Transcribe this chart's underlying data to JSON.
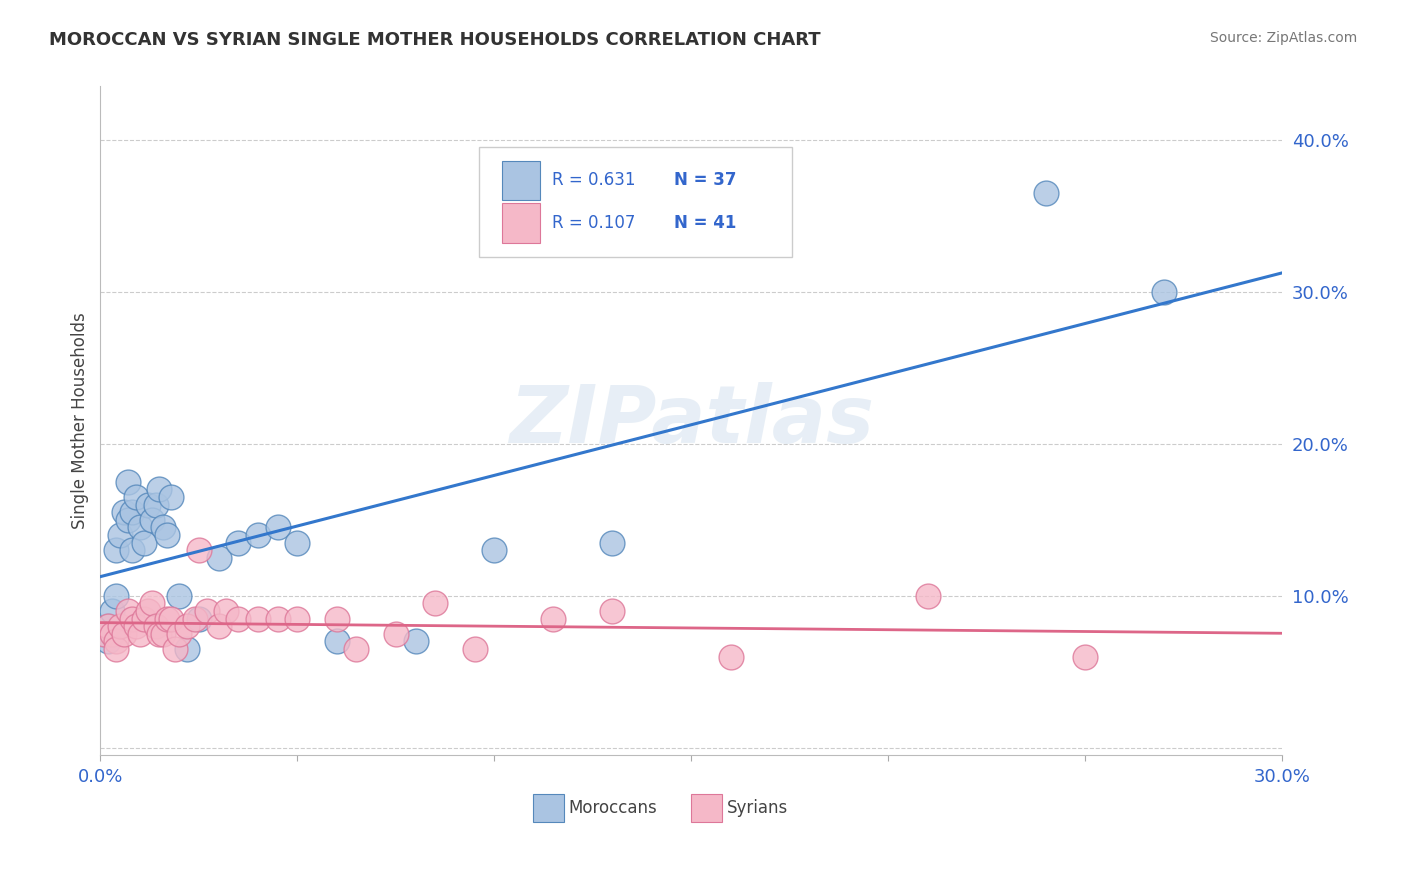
{
  "title": "MOROCCAN VS SYRIAN SINGLE MOTHER HOUSEHOLDS CORRELATION CHART",
  "source": "Source: ZipAtlas.com",
  "ylabel": "Single Mother Households",
  "xlim": [
    0.0,
    0.3
  ],
  "ylim": [
    -0.005,
    0.435
  ],
  "moroccan_R": "0.631",
  "moroccan_N": "37",
  "syrian_R": "0.107",
  "syrian_N": "41",
  "moroccan_color": "#aac4e2",
  "moroccan_edge": "#5588bb",
  "syrian_color": "#f5b8c8",
  "syrian_edge": "#dd7799",
  "moroccan_line_color": "#3377cc",
  "syrian_line_color": "#dd6688",
  "watermark": "ZIPatlas",
  "legend_text_color": "#3366cc",
  "ytick_labels": [
    "",
    "10.0%",
    "20.0%",
    "30.0%",
    "40.0%"
  ],
  "ytick_values": [
    0.0,
    0.1,
    0.2,
    0.3,
    0.4
  ],
  "xtick_values": [
    0.0,
    0.05,
    0.1,
    0.15,
    0.2,
    0.25,
    0.3
  ],
  "moroccan_x": [
    0.001,
    0.002,
    0.002,
    0.003,
    0.003,
    0.004,
    0.004,
    0.005,
    0.006,
    0.007,
    0.007,
    0.008,
    0.008,
    0.009,
    0.01,
    0.011,
    0.012,
    0.013,
    0.014,
    0.015,
    0.016,
    0.017,
    0.018,
    0.02,
    0.022,
    0.025,
    0.03,
    0.035,
    0.04,
    0.045,
    0.05,
    0.06,
    0.08,
    0.1,
    0.13,
    0.24,
    0.27
  ],
  "moroccan_y": [
    0.075,
    0.07,
    0.08,
    0.09,
    0.075,
    0.13,
    0.1,
    0.14,
    0.155,
    0.175,
    0.15,
    0.155,
    0.13,
    0.165,
    0.145,
    0.135,
    0.16,
    0.15,
    0.16,
    0.17,
    0.145,
    0.14,
    0.165,
    0.1,
    0.065,
    0.085,
    0.125,
    0.135,
    0.14,
    0.145,
    0.135,
    0.07,
    0.07,
    0.13,
    0.135,
    0.365,
    0.3
  ],
  "syrian_x": [
    0.001,
    0.002,
    0.003,
    0.004,
    0.004,
    0.005,
    0.006,
    0.007,
    0.008,
    0.009,
    0.01,
    0.011,
    0.012,
    0.013,
    0.014,
    0.015,
    0.016,
    0.017,
    0.018,
    0.019,
    0.02,
    0.022,
    0.024,
    0.025,
    0.027,
    0.03,
    0.032,
    0.035,
    0.04,
    0.045,
    0.05,
    0.06,
    0.065,
    0.075,
    0.085,
    0.095,
    0.115,
    0.13,
    0.16,
    0.21,
    0.25
  ],
  "syrian_y": [
    0.075,
    0.08,
    0.075,
    0.07,
    0.065,
    0.08,
    0.075,
    0.09,
    0.085,
    0.08,
    0.075,
    0.085,
    0.09,
    0.095,
    0.08,
    0.075,
    0.075,
    0.085,
    0.085,
    0.065,
    0.075,
    0.08,
    0.085,
    0.13,
    0.09,
    0.08,
    0.09,
    0.085,
    0.085,
    0.085,
    0.085,
    0.085,
    0.065,
    0.075,
    0.095,
    0.065,
    0.085,
    0.09,
    0.06,
    0.1,
    0.06
  ]
}
